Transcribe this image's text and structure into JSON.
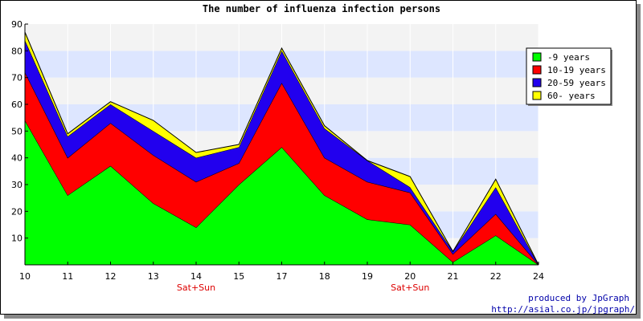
{
  "chart_data": {
    "type": "area",
    "stacked": true,
    "title": "The number of influenza infection persons",
    "x": [
      "10",
      "11",
      "12",
      "13",
      "14",
      "15",
      "17",
      "18",
      "19",
      "20",
      "21",
      "22",
      "24"
    ],
    "ylim": [
      0,
      90
    ],
    "yticks": [
      10,
      20,
      30,
      40,
      50,
      60,
      70,
      80,
      90
    ],
    "weekend_labels": [
      {
        "x": "14",
        "text": "Sat+Sun"
      },
      {
        "x": "20",
        "text": "Sat+Sun"
      }
    ],
    "series": [
      {
        "name": "-9 years",
        "color": "#00ff00",
        "values": [
          54,
          26,
          37,
          23,
          14,
          30,
          44,
          26,
          17,
          15,
          1,
          11,
          0
        ]
      },
      {
        "name": "10-19 years",
        "color": "#ff0000",
        "values": [
          18,
          14,
          16,
          18,
          17,
          8,
          24,
          14,
          14,
          12,
          3,
          8,
          0
        ]
      },
      {
        "name": "20-59 years",
        "color": "#2200ee",
        "values": [
          12,
          8,
          7,
          9,
          9,
          6,
          12,
          11,
          8,
          2,
          1,
          10,
          0
        ]
      },
      {
        "name": "60- years",
        "color": "#ffff00",
        "values": [
          3,
          1,
          1,
          4,
          2,
          1,
          1,
          1,
          0,
          4,
          0,
          3,
          0
        ]
      }
    ],
    "grid": true,
    "band_colors": [
      "#f3f3f3",
      "#dde6ff"
    ],
    "legend_position": "top-right"
  },
  "credits": {
    "line1": "produced by JpGraph",
    "line2": "http://asial.co.jp/jpgraph/"
  }
}
